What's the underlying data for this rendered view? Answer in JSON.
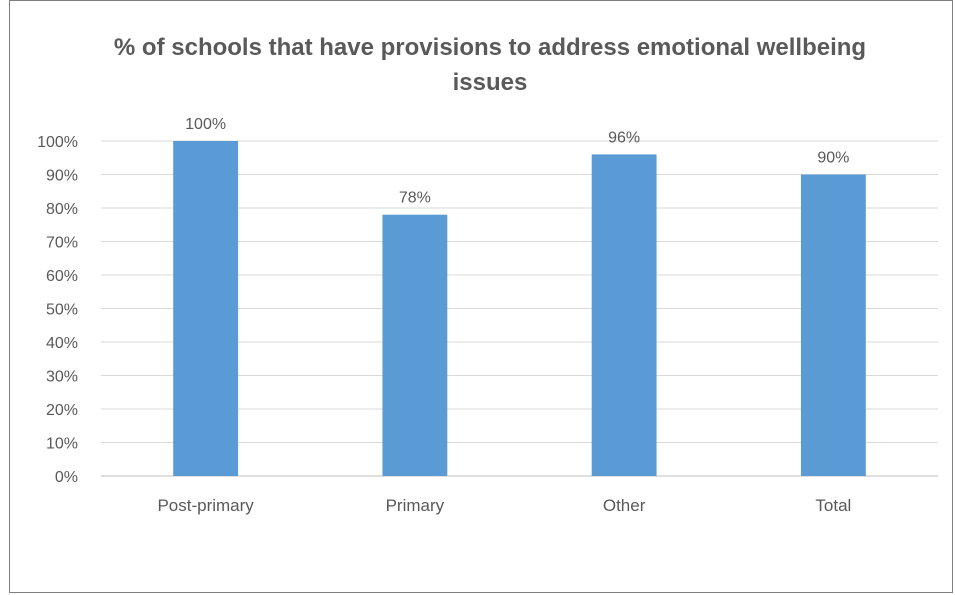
{
  "chart_data": {
    "type": "bar",
    "title": "% of schools that have provisions to address emotional wellbeing issues",
    "categories": [
      "Post-primary",
      "Primary",
      "Other",
      "Total"
    ],
    "values": [
      100,
      78,
      96,
      90
    ],
    "data_labels": [
      "100%",
      "78%",
      "96%",
      "90%"
    ],
    "ylim": [
      0,
      100
    ],
    "y_ticks": [
      "0%",
      "10%",
      "20%",
      "30%",
      "40%",
      "50%",
      "60%",
      "70%",
      "80%",
      "90%",
      "100%"
    ],
    "grid": true,
    "legend": "none",
    "bar_color": "#5b9bd5"
  }
}
